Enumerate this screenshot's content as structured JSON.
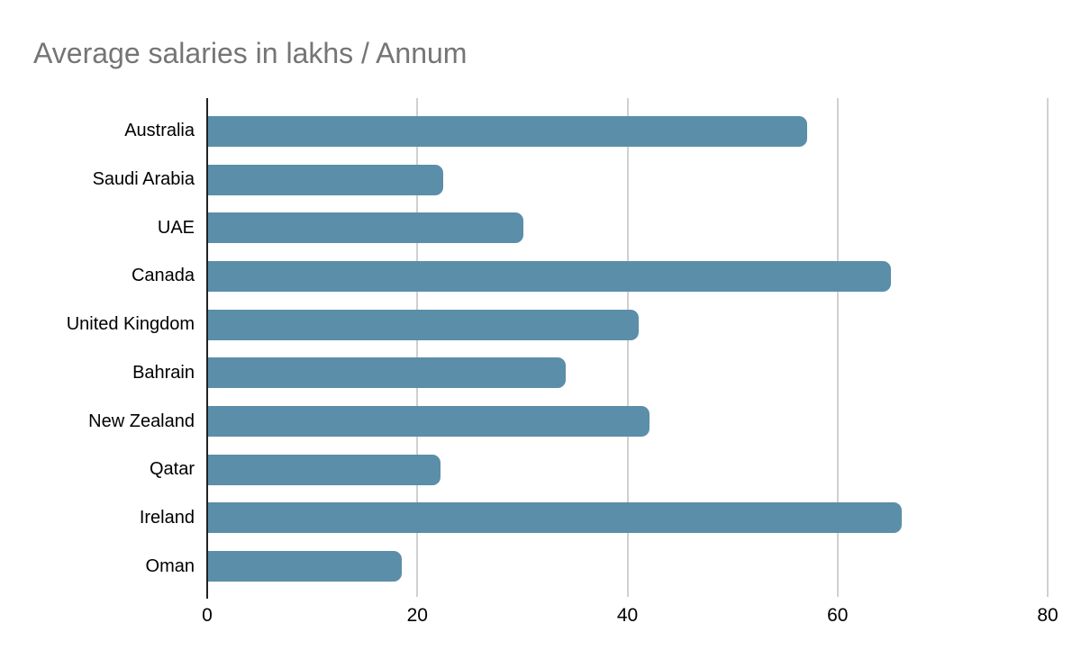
{
  "chart": {
    "bar_color": "#5b8ea9",
    "grid_color": "#d0d0d0",
    "axis_color": "#222222",
    "title_color": "#757575",
    "label_color": "#000000",
    "background_color": "#ffffff"
  },
  "chart_data": {
    "type": "bar",
    "orientation": "horizontal",
    "title": "Average salaries in lakhs / Annum",
    "xlabel": "",
    "ylabel": "",
    "categories": [
      "Australia",
      "Saudi Arabia",
      "UAE",
      "Canada",
      "United Kingdom",
      "Bahrain",
      "New Zealand",
      "Qatar",
      "Ireland",
      "Oman"
    ],
    "values": [
      57,
      22.4,
      30,
      65,
      41,
      34,
      42,
      22.1,
      66,
      18.4
    ],
    "xlim": [
      0,
      80
    ],
    "xticks": [
      0,
      20,
      40,
      60,
      80
    ],
    "grid": true,
    "legend": false
  }
}
